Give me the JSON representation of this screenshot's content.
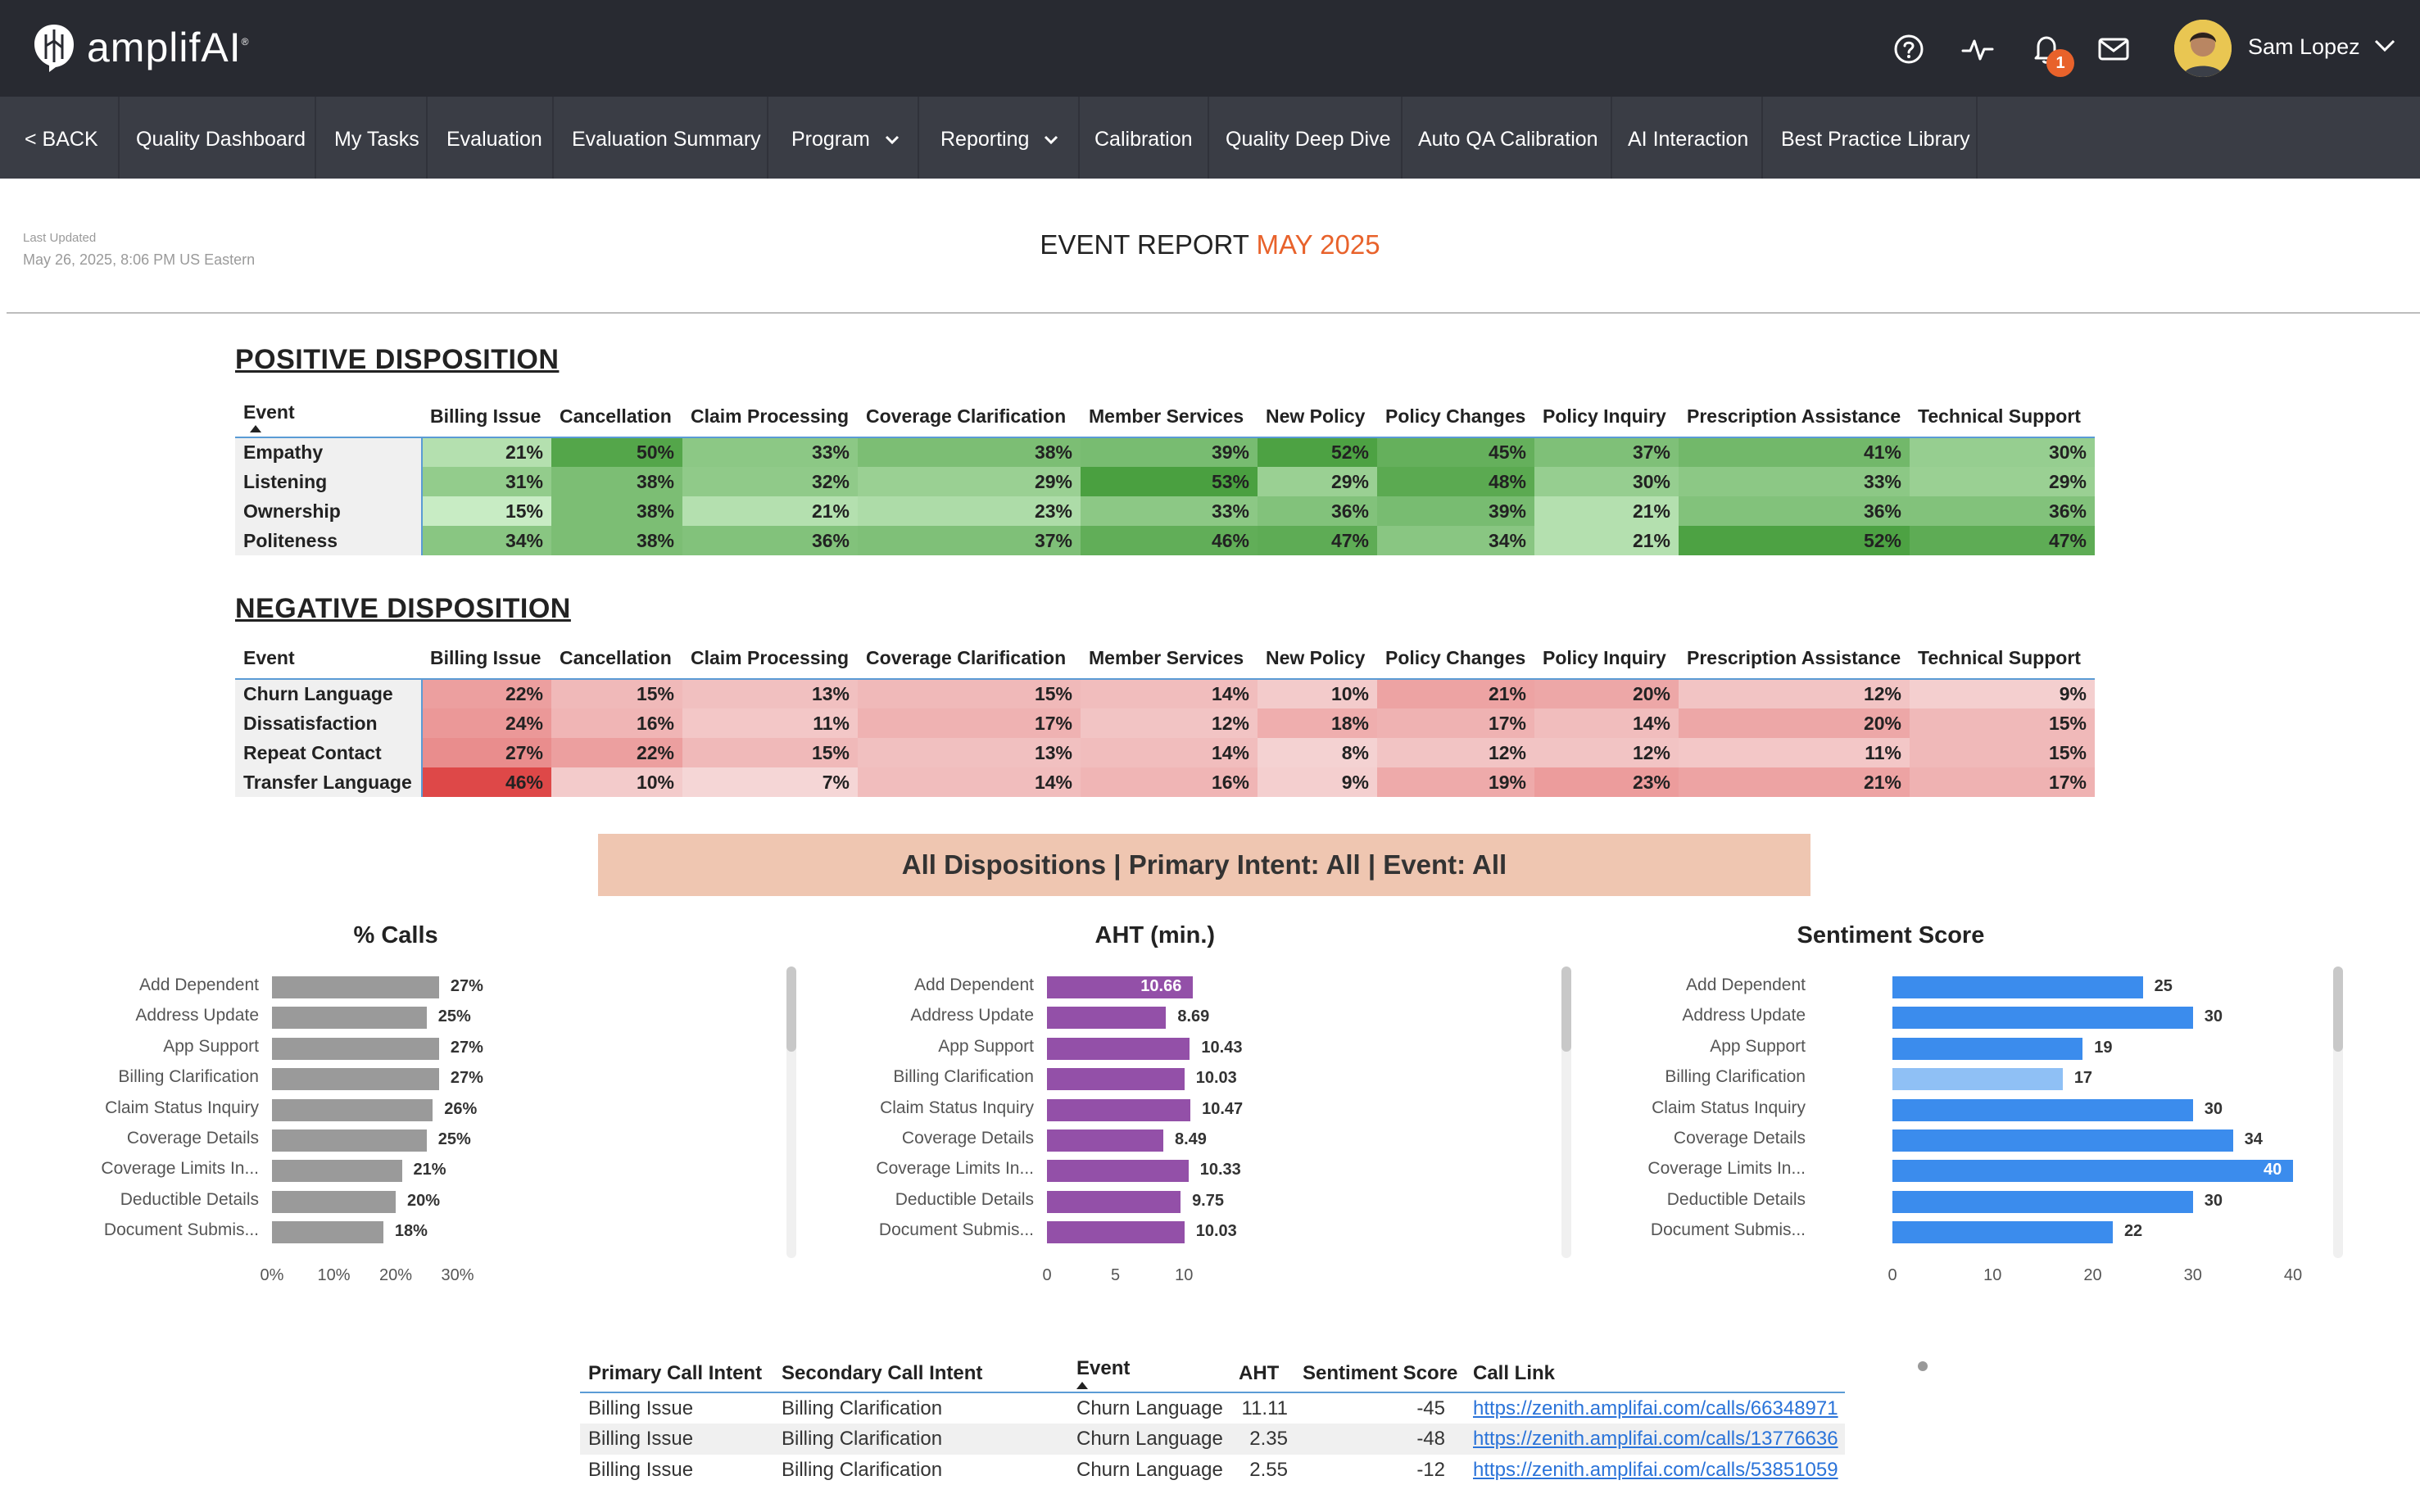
{
  "app": {
    "logo_text": "amplifAI",
    "user_name": "Sam Lopez",
    "notification_count": "1"
  },
  "nav": {
    "back": "< BACK",
    "items": [
      "Quality Dashboard",
      "My Tasks",
      "Evaluation",
      "Evaluation Summary",
      "Program",
      "Reporting",
      "Calibration",
      "Quality Deep Dive",
      "Auto QA Calibration",
      "AI Interaction",
      "Best Practice Library"
    ]
  },
  "header": {
    "last_updated_label": "Last Updated",
    "last_updated_value": "May 26, 2025, 8:06 PM US Eastern",
    "title_main": "EVENT REPORT",
    "title_accent": "MAY 2025"
  },
  "positive": {
    "title": "POSITIVE DISPOSITION",
    "columns": [
      "Event",
      "Billing Issue",
      "Cancellation",
      "Claim Processing",
      "Coverage Clarification",
      "Member Services",
      "New Policy",
      "Policy Changes",
      "Policy Inquiry",
      "Prescription Assistance",
      "Technical Support"
    ],
    "rows": [
      {
        "event": "Empathy",
        "values": [
          "21%",
          "50%",
          "33%",
          "38%",
          "39%",
          "52%",
          "45%",
          "37%",
          "41%",
          "30%"
        ]
      },
      {
        "event": "Listening",
        "values": [
          "31%",
          "38%",
          "32%",
          "29%",
          "53%",
          "29%",
          "48%",
          "30%",
          "33%",
          "29%"
        ]
      },
      {
        "event": "Ownership",
        "values": [
          "15%",
          "38%",
          "21%",
          "23%",
          "33%",
          "36%",
          "39%",
          "21%",
          "36%",
          "36%"
        ]
      },
      {
        "event": "Politeness",
        "values": [
          "34%",
          "38%",
          "36%",
          "37%",
          "46%",
          "47%",
          "34%",
          "21%",
          "52%",
          "47%"
        ]
      }
    ]
  },
  "negative": {
    "title": "NEGATIVE DISPOSITION",
    "columns": [
      "Event",
      "Billing Issue",
      "Cancellation",
      "Claim Processing",
      "Coverage Clarification",
      "Member Services",
      "New Policy",
      "Policy Changes",
      "Policy Inquiry",
      "Prescription Assistance",
      "Technical Support"
    ],
    "rows": [
      {
        "event": "Churn Language",
        "values": [
          "22%",
          "15%",
          "13%",
          "15%",
          "14%",
          "10%",
          "21%",
          "20%",
          "12%",
          "9%"
        ]
      },
      {
        "event": "Dissatisfaction",
        "values": [
          "24%",
          "16%",
          "11%",
          "17%",
          "12%",
          "18%",
          "17%",
          "14%",
          "20%",
          "15%"
        ]
      },
      {
        "event": "Repeat Contact",
        "values": [
          "27%",
          "22%",
          "15%",
          "13%",
          "14%",
          "8%",
          "12%",
          "12%",
          "11%",
          "15%"
        ]
      },
      {
        "event": "Transfer Language",
        "values": [
          "46%",
          "10%",
          "7%",
          "14%",
          "16%",
          "9%",
          "19%",
          "23%",
          "21%",
          "17%"
        ]
      }
    ]
  },
  "banner": "All Dispositions | Primary Intent: All | Event: All",
  "chart_data": [
    {
      "type": "bar",
      "orientation": "horizontal",
      "title": "% Calls",
      "categories": [
        "Add Dependent",
        "Address Update",
        "App Support",
        "Billing Clarification",
        "Claim Status Inquiry",
        "Coverage Details",
        "Coverage Limits In...",
        "Deductible Details",
        "Document Submis..."
      ],
      "values": [
        27,
        25,
        27,
        27,
        26,
        25,
        21,
        20,
        18
      ],
      "value_labels": [
        "27%",
        "25%",
        "27%",
        "27%",
        "26%",
        "25%",
        "21%",
        "20%",
        "18%"
      ],
      "xlim": [
        0,
        30
      ],
      "ticks": [
        0,
        10,
        20,
        30
      ],
      "tick_labels": [
        "0%",
        "10%",
        "20%",
        "30%"
      ],
      "color": "#9a9a9a"
    },
    {
      "type": "bar",
      "orientation": "horizontal",
      "title": "AHT (min.)",
      "categories": [
        "Add Dependent",
        "Address Update",
        "App Support",
        "Billing Clarification",
        "Claim Status Inquiry",
        "Coverage Details",
        "Coverage Limits In...",
        "Deductible Details",
        "Document Submis..."
      ],
      "values": [
        10.66,
        8.69,
        10.43,
        10.03,
        10.47,
        8.49,
        10.33,
        9.75,
        10.03
      ],
      "value_labels": [
        "10.66",
        "8.69",
        "10.43",
        "10.03",
        "10.47",
        "8.49",
        "10.33",
        "9.75",
        "10.03"
      ],
      "xlim": [
        0,
        12.7
      ],
      "ticks": [
        0,
        5,
        10
      ],
      "tick_labels": [
        "0",
        "5",
        "10"
      ],
      "color": "#9350a8"
    },
    {
      "type": "bar",
      "orientation": "horizontal",
      "title": "Sentiment Score",
      "categories": [
        "Add Dependent",
        "Address Update",
        "App Support",
        "Billing Clarification",
        "Claim Status Inquiry",
        "Coverage Details",
        "Coverage Limits In...",
        "Deductible Details",
        "Document Submis..."
      ],
      "values": [
        25,
        30,
        19,
        17,
        30,
        34,
        40,
        30,
        22
      ],
      "value_labels": [
        "25",
        "30",
        "19",
        "17",
        "30",
        "34",
        "40",
        "30",
        "22"
      ],
      "xlim": [
        0,
        40
      ],
      "ticks": [
        0,
        10,
        20,
        30,
        40
      ],
      "tick_labels": [
        "0",
        "10",
        "20",
        "30",
        "40"
      ],
      "color": "#3b8ced",
      "highlight_color": "#8fc0f5",
      "highlight_index": 3
    }
  ],
  "calls_table": {
    "columns": [
      "Primary Call Intent",
      "Secondary Call Intent",
      "Event",
      "AHT",
      "Sentiment Score",
      "Call Link"
    ],
    "rows": [
      [
        "Billing Issue",
        "Billing Clarification",
        "Churn Language",
        "11.11",
        "-45",
        "https://zenith.amplifai.com/calls/66348971"
      ],
      [
        "Billing Issue",
        "Billing Clarification",
        "Churn Language",
        "2.35",
        "-48",
        "https://zenith.amplifai.com/calls/13776636"
      ],
      [
        "Billing Issue",
        "Billing Clarification",
        "Churn Language",
        "2.55",
        "-12",
        "https://zenith.amplifai.com/calls/53851059"
      ]
    ]
  }
}
